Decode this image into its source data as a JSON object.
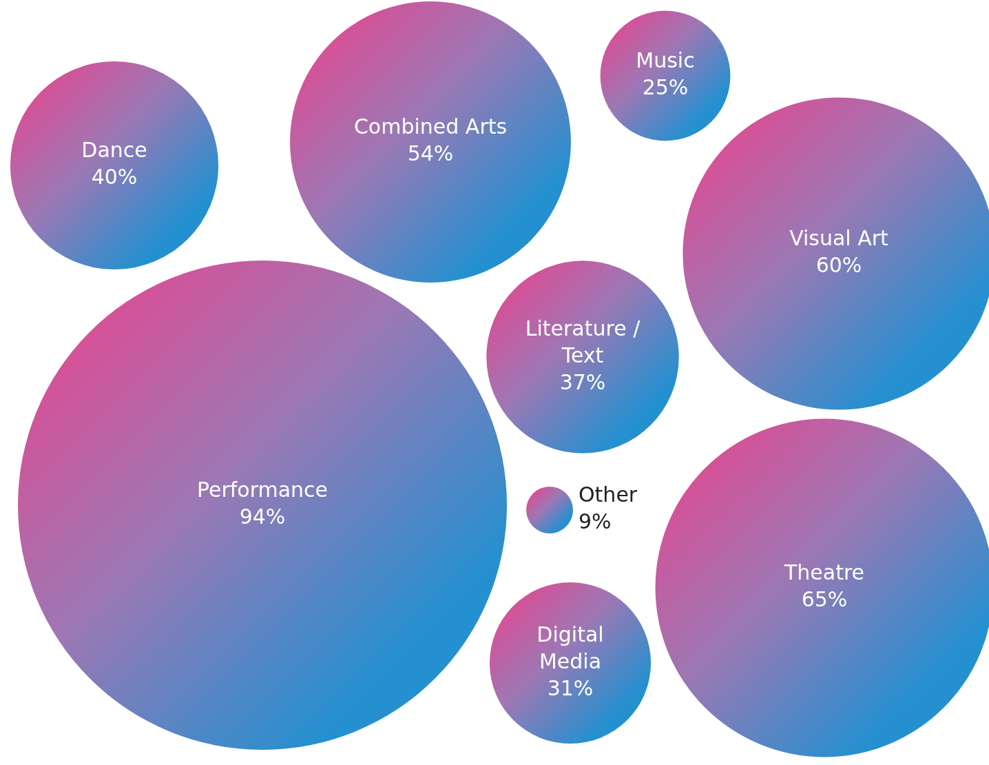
{
  "chart_data": {
    "type": "other",
    "categories": [
      "Performance",
      "Digital Media",
      "Theatre",
      "Other",
      "Literature / Text",
      "Visual Art",
      "Dance",
      "Combined Arts",
      "Music"
    ],
    "values": [
      94,
      31,
      65,
      9,
      37,
      60,
      40,
      54,
      25
    ],
    "value_labels": [
      "94%",
      "31%",
      "65%",
      "9%",
      "37%",
      "60%",
      "40%",
      "54%",
      "25%"
    ]
  }
}
